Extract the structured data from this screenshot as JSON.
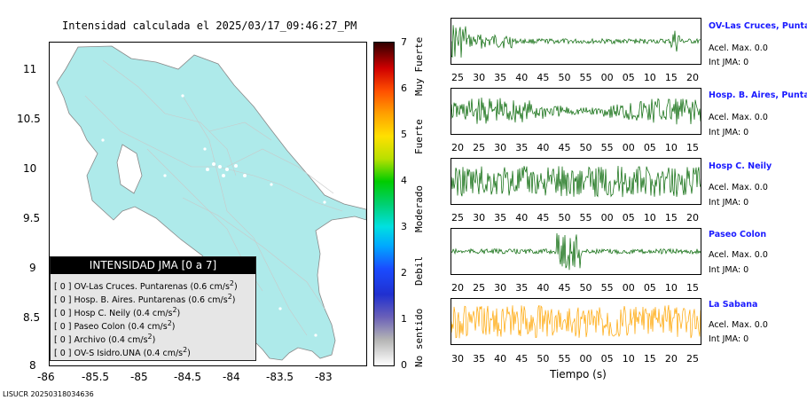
{
  "title": "Intensidad calculada el 2025/03/17_09:46:27_PM",
  "map": {
    "lat_labels": [
      "11",
      "10.5",
      "10",
      "9.5",
      "9",
      "8.5",
      "8"
    ],
    "lon_labels": [
      "-86",
      "-85.5",
      "-85",
      "-84.5",
      "-84",
      "-83.5",
      "-83"
    ],
    "land_color": "#aeeaea"
  },
  "legend": {
    "title": "INTENSIDAD JMA [0 a 7]",
    "items": [
      {
        "level": "[ 0 ]",
        "label": "OV-Las Cruces. Puntarenas",
        "value": "(0.6 cm/s",
        "sup": "2",
        "close": ")"
      },
      {
        "level": "[ 0 ]",
        "label": "Hosp. B. Aires. Puntarenas",
        "value": "(0.6 cm/s",
        "sup": "2",
        "close": ")"
      },
      {
        "level": "[ 0 ]",
        "label": "Hosp C. Neily",
        "value": "(0.4 cm/s",
        "sup": "2",
        "close": ")"
      },
      {
        "level": "[ 0 ]",
        "label": "Paseo Colon",
        "value": "(0.4 cm/s",
        "sup": "2",
        "close": ")"
      },
      {
        "level": "[ 0 ]",
        "label": "Archivo",
        "value": "(0.4 cm/s",
        "sup": "2",
        "close": ")"
      },
      {
        "level": "[ 0 ]",
        "label": "OV-S Isidro.UNA",
        "value": "(0.4 cm/s",
        "sup": "2",
        "close": ")"
      }
    ]
  },
  "colorbar": {
    "numbers": [
      "7",
      "6",
      "5",
      "4",
      "3",
      "2",
      "1",
      "0"
    ],
    "labels": [
      "Muy Fuerte",
      "Fuerte",
      "Moderado",
      "Debil",
      "No sentido"
    ]
  },
  "stations": [
    {
      "name": "OV-Las Cruces, Puntar",
      "accel": "Acel. Max. 0.0",
      "int": "Int JMA: 0",
      "color": "#006400",
      "ticks": [
        "25",
        "30",
        "35",
        "40",
        "45",
        "50",
        "55",
        "00",
        "05",
        "10",
        "15",
        "20"
      ]
    },
    {
      "name": "Hosp. B. Aires, Puntare",
      "accel": "Acel. Max. 0.0",
      "int": "Int JMA: 0",
      "color": "#006400",
      "ticks": [
        "20",
        "25",
        "30",
        "35",
        "40",
        "45",
        "50",
        "55",
        "00",
        "05",
        "10",
        "15"
      ]
    },
    {
      "name": "Hosp C. Neily",
      "accel": "Acel. Max. 0.0",
      "int": "Int JMA: 0",
      "color": "#006400",
      "ticks": [
        "25",
        "30",
        "35",
        "40",
        "45",
        "50",
        "55",
        "00",
        "05",
        "10",
        "15",
        "20"
      ]
    },
    {
      "name": "Paseo Colon",
      "accel": "Acel. Max. 0.0",
      "int": "Int JMA: 0",
      "color": "#006400",
      "ticks": [
        "20",
        "25",
        "30",
        "35",
        "40",
        "45",
        "50",
        "55",
        "00",
        "05",
        "10",
        "15"
      ]
    },
    {
      "name": "La Sabana",
      "accel": "Acel. Max. 0.0",
      "int": "Int JMA: 0",
      "color": "#ffa500",
      "ticks": [
        "30",
        "35",
        "40",
        "45",
        "50",
        "55",
        "00",
        "05",
        "10",
        "15",
        "20",
        "25"
      ]
    }
  ],
  "xlabel": "Tiempo (s)",
  "footer": "LISUCR 20250318034636"
}
